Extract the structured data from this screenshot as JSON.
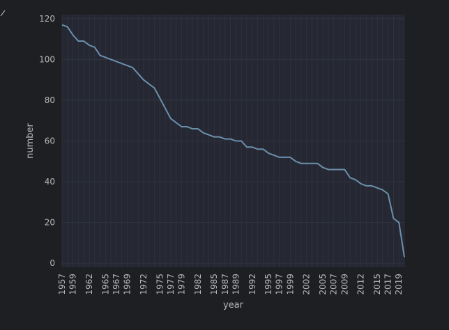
{
  "chart_data": {
    "type": "line",
    "title": "",
    "xlabel": "year",
    "ylabel": "number",
    "xlim": [
      1957,
      2020
    ],
    "ylim": [
      -2,
      122
    ],
    "yticks": [
      0,
      20,
      40,
      60,
      80,
      100,
      120
    ],
    "xtick_labels": [
      1957,
      1959,
      1962,
      1965,
      1967,
      1969,
      1972,
      1975,
      1977,
      1979,
      1982,
      1985,
      1987,
      1989,
      1992,
      1995,
      1997,
      1999,
      2002,
      2005,
      2007,
      2009,
      2012,
      2015,
      2017,
      2019
    ],
    "grid": true,
    "legend": "none",
    "colors": {
      "line": "#6b8fab",
      "plot_background": "#252833",
      "grid": "#30333d",
      "page_background": "#1e1f22",
      "text": "#b8b8b8"
    },
    "series": [
      {
        "x": [
          1957,
          1958,
          1959,
          1960,
          1961,
          1962,
          1963,
          1964,
          1965,
          1966,
          1967,
          1968,
          1969,
          1970,
          1971,
          1972,
          1973,
          1974,
          1975,
          1976,
          1977,
          1978,
          1979,
          1980,
          1981,
          1982,
          1983,
          1984,
          1985,
          1986,
          1987,
          1988,
          1989,
          1990,
          1991,
          1992,
          1993,
          1994,
          1995,
          1996,
          1997,
          1998,
          1999,
          2000,
          2001,
          2002,
          2003,
          2004,
          2005,
          2006,
          2007,
          2008,
          2009,
          2010,
          2011,
          2012,
          2013,
          2014,
          2015,
          2016,
          2017,
          2018,
          2019,
          2020
        ],
        "y": [
          117,
          116,
          112,
          109,
          109,
          107,
          106,
          102,
          101,
          100,
          99,
          98,
          97,
          96,
          93,
          90,
          88,
          86,
          81,
          76,
          71,
          69,
          67,
          67,
          66,
          66,
          64,
          63,
          62,
          62,
          61,
          61,
          60,
          60,
          57,
          57,
          56,
          56,
          54,
          53,
          52,
          52,
          52,
          50,
          49,
          49,
          49,
          49,
          47,
          46,
          46,
          46,
          46,
          42,
          41,
          39,
          38,
          38,
          37,
          36,
          34,
          22,
          20,
          3
        ]
      }
    ]
  }
}
